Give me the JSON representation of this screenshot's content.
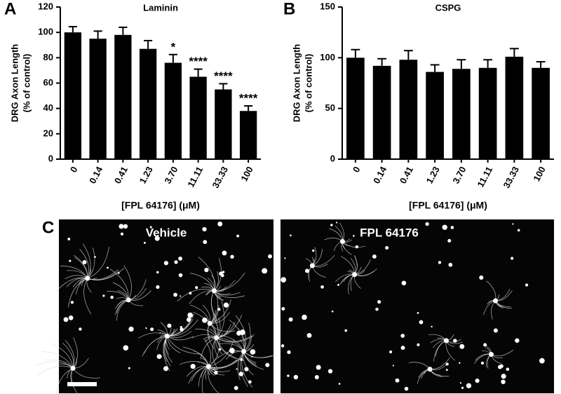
{
  "panel_labels": [
    "A",
    "B",
    "C"
  ],
  "chart_data": [
    {
      "type": "bar",
      "title": "Laminin",
      "ylabel": [
        "DRG Axon Length",
        "(% of control)"
      ],
      "xlabel": "[FPL 64176] (μM)",
      "categories": [
        "0",
        "0.14",
        "0.41",
        "1.23",
        "3.70",
        "11.11",
        "33.33",
        "100"
      ],
      "values": [
        100,
        95,
        98,
        87,
        76,
        65,
        55,
        38
      ],
      "errors": [
        4.5,
        6,
        6,
        6.5,
        6.5,
        6,
        4.5,
        4
      ],
      "annotations": [
        null,
        null,
        null,
        null,
        "*",
        "****",
        "****",
        "****"
      ],
      "color": "#000000",
      "ylim": [
        0,
        120
      ],
      "yticks": [
        0,
        20,
        40,
        60,
        80,
        100,
        120
      ]
    },
    {
      "type": "bar",
      "title": "CSPG",
      "ylabel": [
        "DRG Axon Length",
        "(% of control)"
      ],
      "xlabel": "[FPL 64176] (μM)",
      "categories": [
        "0",
        "0.14",
        "0.41",
        "1.23",
        "3.70",
        "11.11",
        "33.33",
        "100"
      ],
      "values": [
        100,
        92,
        98,
        86,
        89,
        90,
        101,
        90
      ],
      "errors": [
        8,
        7,
        9,
        7,
        9,
        8,
        8,
        6
      ],
      "annotations": [
        null,
        null,
        null,
        null,
        null,
        null,
        null,
        null
      ],
      "color": "#000000",
      "ylim": [
        0,
        150
      ],
      "yticks": [
        0,
        50,
        100,
        150
      ]
    }
  ],
  "images": [
    {
      "label": "Vehicle"
    },
    {
      "label": "FPL 64176"
    }
  ]
}
